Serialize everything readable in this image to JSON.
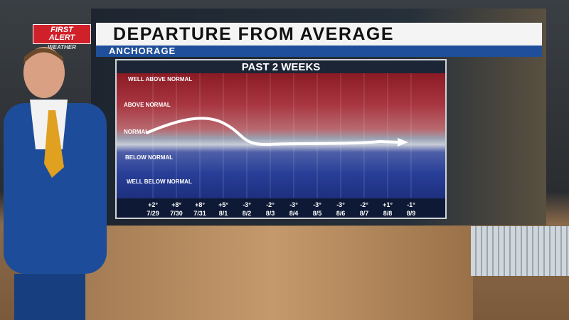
{
  "logo": {
    "line1": "FIRST",
    "line2": "ALERT",
    "line3": "WEATHER"
  },
  "header": {
    "title": "DEPARTURE FROM AVERAGE",
    "location": "ANCHORAGE"
  },
  "panel": {
    "title": "PAST 2 WEEKS",
    "bands": [
      "WELL ABOVE NORMAL",
      "ABOVE NORMAL",
      "NORMAL",
      "BELOW NORMAL",
      "WELL BELOW NORMAL"
    ],
    "days": [
      {
        "departure": "+2°",
        "date": "7/29"
      },
      {
        "departure": "+8°",
        "date": "7/30"
      },
      {
        "departure": "+8°",
        "date": "7/31"
      },
      {
        "departure": "+5°",
        "date": "8/1"
      },
      {
        "departure": "-3°",
        "date": "8/2"
      },
      {
        "departure": "-2°",
        "date": "8/3"
      },
      {
        "departure": "-3°",
        "date": "8/4"
      },
      {
        "departure": "-3°",
        "date": "8/5"
      },
      {
        "departure": "-3°",
        "date": "8/6"
      },
      {
        "departure": "-2°",
        "date": "8/7"
      },
      {
        "departure": "+1°",
        "date": "8/8"
      },
      {
        "departure": "-1°",
        "date": "8/9"
      }
    ]
  }
}
